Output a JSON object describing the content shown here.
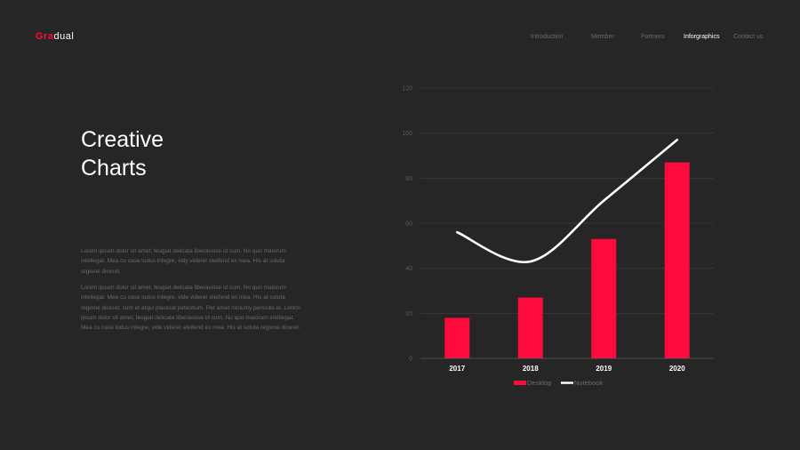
{
  "brand": {
    "accent": "Gra",
    "rest": "dual"
  },
  "nav": {
    "items": [
      "Introduction",
      "Member",
      "Partners",
      "Inforgraphics",
      "Contact us"
    ],
    "active_index": 3
  },
  "heading": {
    "line1": "Creative",
    "line2": "Charts"
  },
  "paragraphs": [
    "Lorem ipsum dolor sit amet, feugiat delicata liberavisse id cum. No quo maiorum intellegat. Mea cu case ludus integre, vidy viderer eleifend ex mea. His at soluta regione diceret.",
    "Lorem ipsum dolor sit amet, feugiat delicata liberavisse id cum. No quo maiorum intellegat. Mea cu case ludus integre, vide viderer eleifend ex mea. His at soluta regione diceret, cum et atqui placerat petentium. Per amet nonumy periculis ei. Lorem ipsum dolor sit amet, feugiat delicata liberavisse id cum. No quo maiorum intellegat. Mea cu case ludus integre, vide viderer eleifend ex mea. His at soluta regione diceret."
  ],
  "colors": {
    "background": "#262626",
    "accent": "#ff0a3c",
    "line": "#ffffff",
    "grid": "#3a3a3a",
    "axis_text": "#5a5a5a",
    "muted_text": "#6a6a6a"
  },
  "chart_data": {
    "type": "bar",
    "categories": [
      "2017",
      "2018",
      "2019",
      "2020"
    ],
    "series": [
      {
        "name": "Desktop",
        "type": "bar",
        "values": [
          18,
          27,
          53,
          87
        ]
      },
      {
        "name": "Notebook",
        "type": "line",
        "values": [
          56,
          43,
          70,
          97
        ]
      }
    ],
    "title": "",
    "xlabel": "",
    "ylabel": "",
    "ylim": [
      0,
      120
    ],
    "yticks": [
      0,
      20,
      40,
      60,
      80,
      100,
      120
    ],
    "grid": true,
    "legend_position": "bottom-center"
  }
}
